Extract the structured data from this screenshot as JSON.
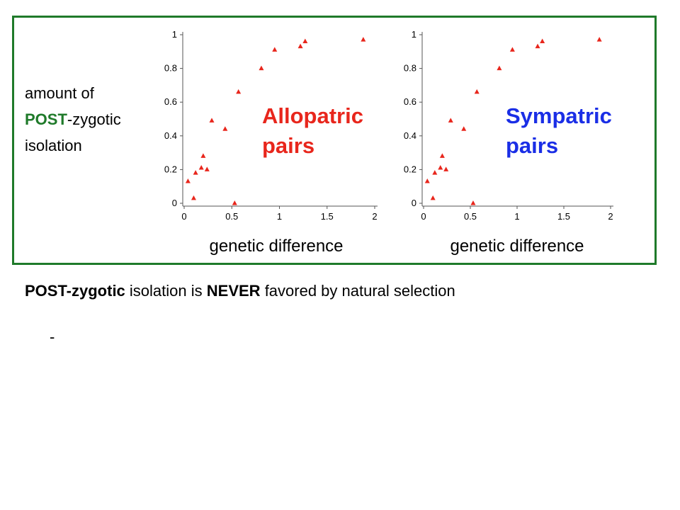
{
  "chart_data": [
    {
      "type": "scatter",
      "xlabel": "genetic difference",
      "annotation": "Allopatric pairs",
      "annotation_color": "#e8261c",
      "x": [
        0.04,
        0.1,
        0.12,
        0.18,
        0.2,
        0.24,
        0.29,
        0.43,
        0.53,
        0.57,
        0.81,
        0.95,
        1.22,
        1.27,
        1.88
      ],
      "series": [
        {
          "color": "#e8261c",
          "values": [
            0.13,
            0.03,
            0.18,
            0.21,
            0.28,
            0.2,
            0.49,
            0.44,
            0.0,
            0.66,
            0.8,
            0.91,
            0.93,
            0.96,
            0.97
          ]
        }
      ],
      "xlim": [
        0,
        2
      ],
      "ylim": [
        0,
        1
      ],
      "xticks": [
        0,
        0.5,
        1,
        1.5,
        2
      ],
      "yticks": [
        0,
        0.2,
        0.4,
        0.6,
        0.8,
        1
      ]
    },
    {
      "type": "scatter",
      "xlabel": "genetic difference",
      "annotation": "Sympatric pairs",
      "annotation_color": "#1a2ee6",
      "x": [
        0.04,
        0.1,
        0.12,
        0.18,
        0.2,
        0.24,
        0.29,
        0.43,
        0.53,
        0.57,
        0.81,
        0.95,
        1.22,
        1.27,
        1.88
      ],
      "series": [
        {
          "color": "#e8261c",
          "values": [
            0.13,
            0.03,
            0.18,
            0.21,
            0.28,
            0.2,
            0.49,
            0.44,
            0.0,
            0.66,
            0.8,
            0.91,
            0.93,
            0.96,
            0.97
          ]
        }
      ],
      "xlim": [
        0,
        2
      ],
      "ylim": [
        0,
        1
      ],
      "xticks": [
        0,
        0.5,
        1,
        1.5,
        2
      ],
      "yticks": [
        0,
        0.2,
        0.4,
        0.6,
        0.8,
        1
      ]
    }
  ],
  "slide": {
    "ylabel": {
      "line1": "amount of",
      "post": "POST",
      "rest": "-zygotic",
      "line3": "isolation"
    },
    "caption": {
      "part1": "POST-zygotic",
      "part2": "isolation is",
      "part3": "NEVER",
      "part4": "favored by natural selection"
    },
    "bullet": "-"
  }
}
